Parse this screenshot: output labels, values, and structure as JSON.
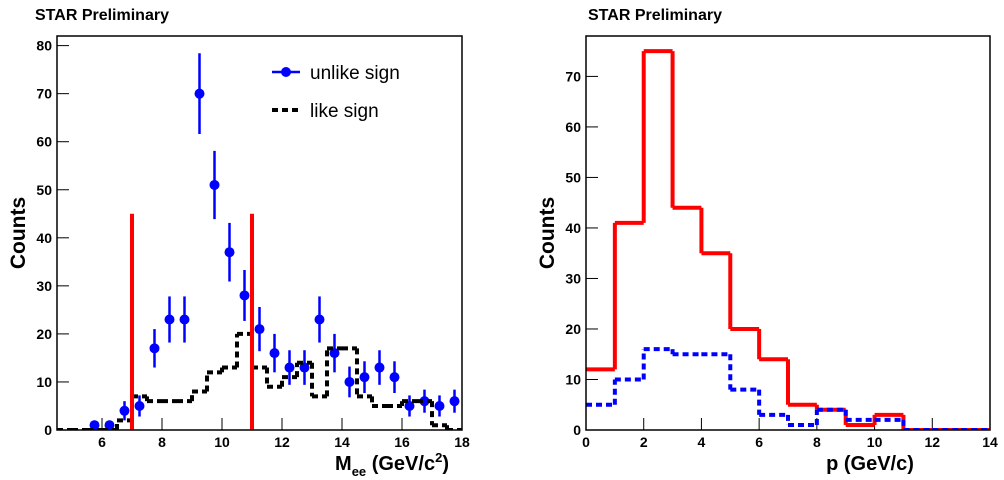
{
  "chart_data": [
    {
      "type": "errorbar",
      "title": "STAR Preliminary",
      "ylabel": "Counts",
      "xlabel": {
        "text": "M",
        "subscript": "ee",
        "unit": " (GeV/c",
        "superscript": "2",
        "close": ")"
      },
      "xlim": [
        4.5,
        18
      ],
      "xticks": [
        6,
        8,
        10,
        12,
        14,
        16,
        18
      ],
      "ylim": [
        0,
        82
      ],
      "yticks": [
        0,
        10,
        20,
        30,
        40,
        50,
        60,
        70,
        80
      ],
      "legend": "upper right",
      "reference_lines": [
        {
          "x": 7,
          "color": "#ff0000"
        },
        {
          "x": 11,
          "color": "#ff0000"
        }
      ],
      "series": [
        {
          "name": "unlike sign",
          "kind": "points",
          "color": "#0000ff",
          "x": [
            5.75,
            6.25,
            6.75,
            7.25,
            7.75,
            8.25,
            8.75,
            9.25,
            9.75,
            10.25,
            10.75,
            11.25,
            11.75,
            12.25,
            12.75,
            13.25,
            13.75,
            14.25,
            14.75,
            15.25,
            15.75,
            16.25,
            16.75,
            17.25,
            17.75
          ],
          "values": [
            1,
            1,
            4,
            5,
            17,
            23,
            23,
            70,
            51,
            37,
            28,
            21,
            16,
            13,
            13,
            23,
            16,
            10,
            11,
            13,
            11,
            5,
            6,
            5,
            6
          ],
          "errors": [
            1,
            1,
            2,
            2.2,
            4,
            4.8,
            4.8,
            8.4,
            7.1,
            6.1,
            5.3,
            4.6,
            4,
            3.6,
            3.6,
            4.8,
            4,
            3.2,
            3.3,
            3.6,
            3.3,
            2.2,
            2.4,
            2.2,
            2.4
          ]
        },
        {
          "name": "like sign",
          "kind": "histogram",
          "color": "#000000",
          "dashed": true,
          "bins": [
            4.5,
            5,
            5.5,
            6,
            6.5,
            7,
            7.5,
            8,
            8.5,
            9,
            9.5,
            10,
            10.5,
            11,
            11.5,
            12,
            12.5,
            13,
            13.5,
            14,
            14.5,
            15,
            15.5,
            16,
            16.5,
            17,
            17.5,
            18
          ],
          "values": [
            0,
            0,
            0,
            0,
            2,
            7,
            6,
            6,
            6,
            8,
            12,
            13,
            20,
            13,
            9,
            11,
            14,
            7,
            17,
            17,
            7,
            5,
            5,
            6,
            6,
            1,
            0
          ]
        }
      ]
    },
    {
      "type": "histogram",
      "title": "STAR Preliminary",
      "ylabel": "Counts",
      "xlabel": {
        "text": "p  (GeV/c)"
      },
      "xlim": [
        0,
        14
      ],
      "xticks": [
        0,
        2,
        4,
        6,
        8,
        10,
        12,
        14
      ],
      "ylim": [
        0,
        78
      ],
      "yticks": [
        0,
        10,
        20,
        30,
        40,
        50,
        60,
        70
      ],
      "series": [
        {
          "kind": "histogram",
          "color": "#ff0000",
          "dashed": false,
          "bins": [
            0,
            1,
            2,
            3,
            4,
            5,
            6,
            7,
            8,
            9,
            10,
            11,
            12,
            13,
            14
          ],
          "values": [
            12,
            41,
            75,
            44,
            35,
            20,
            14,
            5,
            4,
            1,
            3,
            0,
            0,
            0
          ]
        },
        {
          "kind": "histogram",
          "color": "#0000ff",
          "dashed": true,
          "bins": [
            0,
            1,
            2,
            3,
            4,
            5,
            6,
            7,
            8,
            9,
            10,
            11,
            12,
            13,
            14
          ],
          "values": [
            5,
            10,
            16,
            15,
            15,
            8,
            3,
            1,
            4,
            2,
            2,
            0,
            0,
            0
          ]
        }
      ]
    }
  ]
}
